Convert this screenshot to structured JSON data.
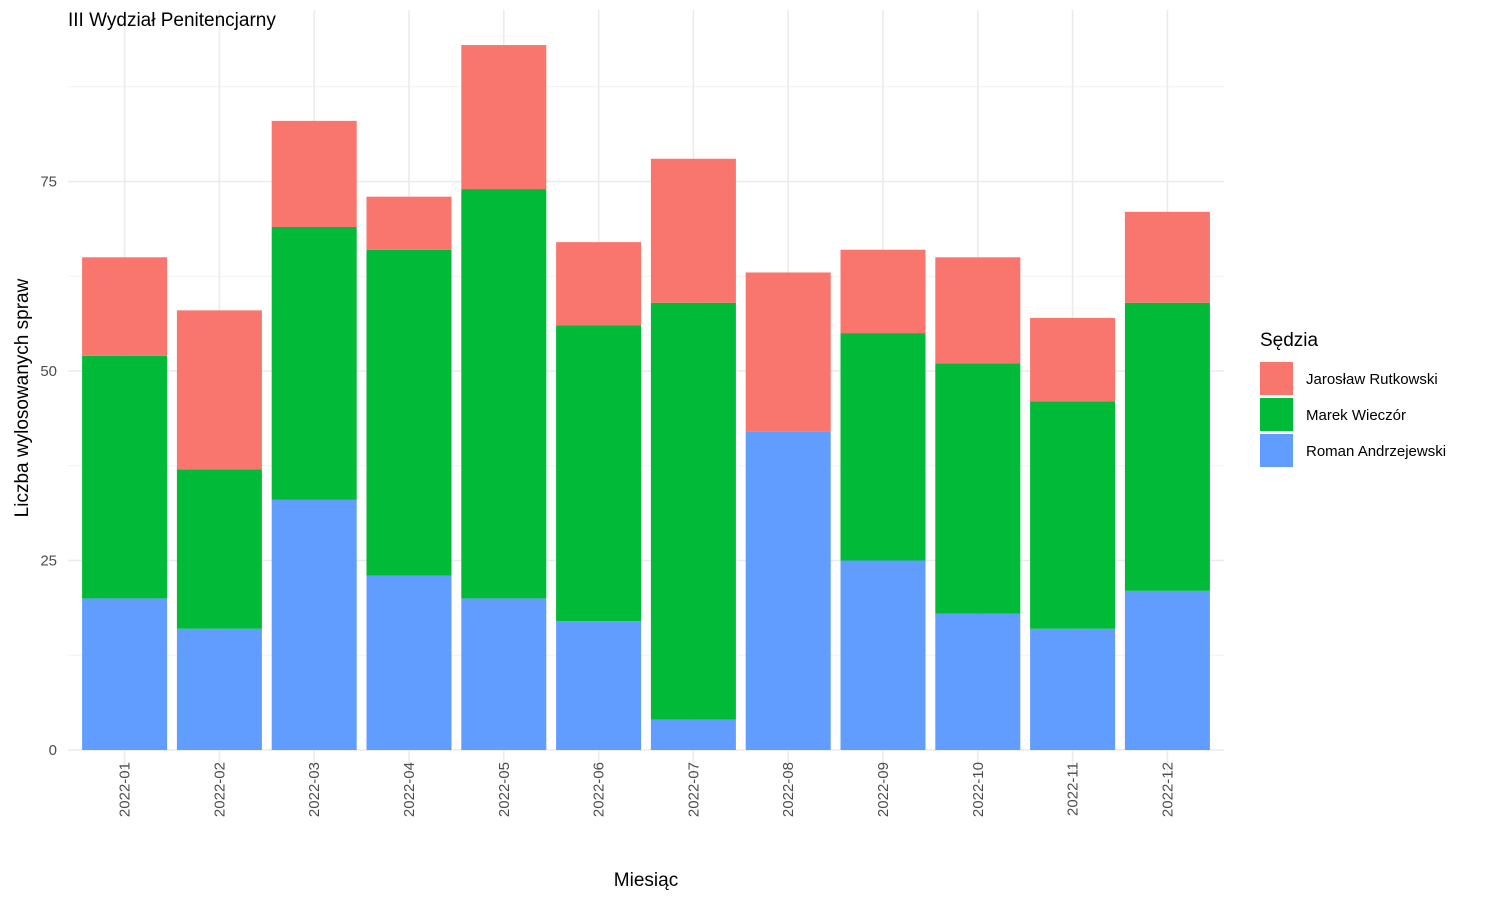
{
  "chart_data": {
    "type": "bar",
    "stacked": true,
    "title": "III Wydział Penitencjarny",
    "xlabel": "Miesiąc",
    "ylabel": "Liczba wylosowanych spraw",
    "ylim": [
      0,
      95
    ],
    "yticks": [
      0,
      25,
      50,
      75
    ],
    "grid": true,
    "legend_position": "right",
    "legend_title": "Sędzia",
    "categories": [
      "2022-01",
      "2022-02",
      "2022-03",
      "2022-04",
      "2022-05",
      "2022-06",
      "2022-07",
      "2022-08",
      "2022-09",
      "2022-10",
      "2022-11",
      "2022-12"
    ],
    "series": [
      {
        "name": "Roman Andrzejewski",
        "color": "#619cff",
        "values": [
          20,
          16,
          33,
          23,
          20,
          17,
          4,
          42,
          25,
          18,
          16,
          21
        ]
      },
      {
        "name": "Marek Wieczór",
        "color": "#00ba38",
        "values": [
          32,
          21,
          36,
          43,
          54,
          39,
          55,
          0,
          30,
          33,
          30,
          38
        ]
      },
      {
        "name": "Jarosław Rutkowski",
        "color": "#f8766d",
        "values": [
          13,
          21,
          14,
          7,
          19,
          11,
          19,
          21,
          11,
          14,
          11,
          12
        ]
      }
    ],
    "legend_order": [
      "Jarosław Rutkowski",
      "Marek Wieczór",
      "Roman Andrzejewski"
    ]
  }
}
